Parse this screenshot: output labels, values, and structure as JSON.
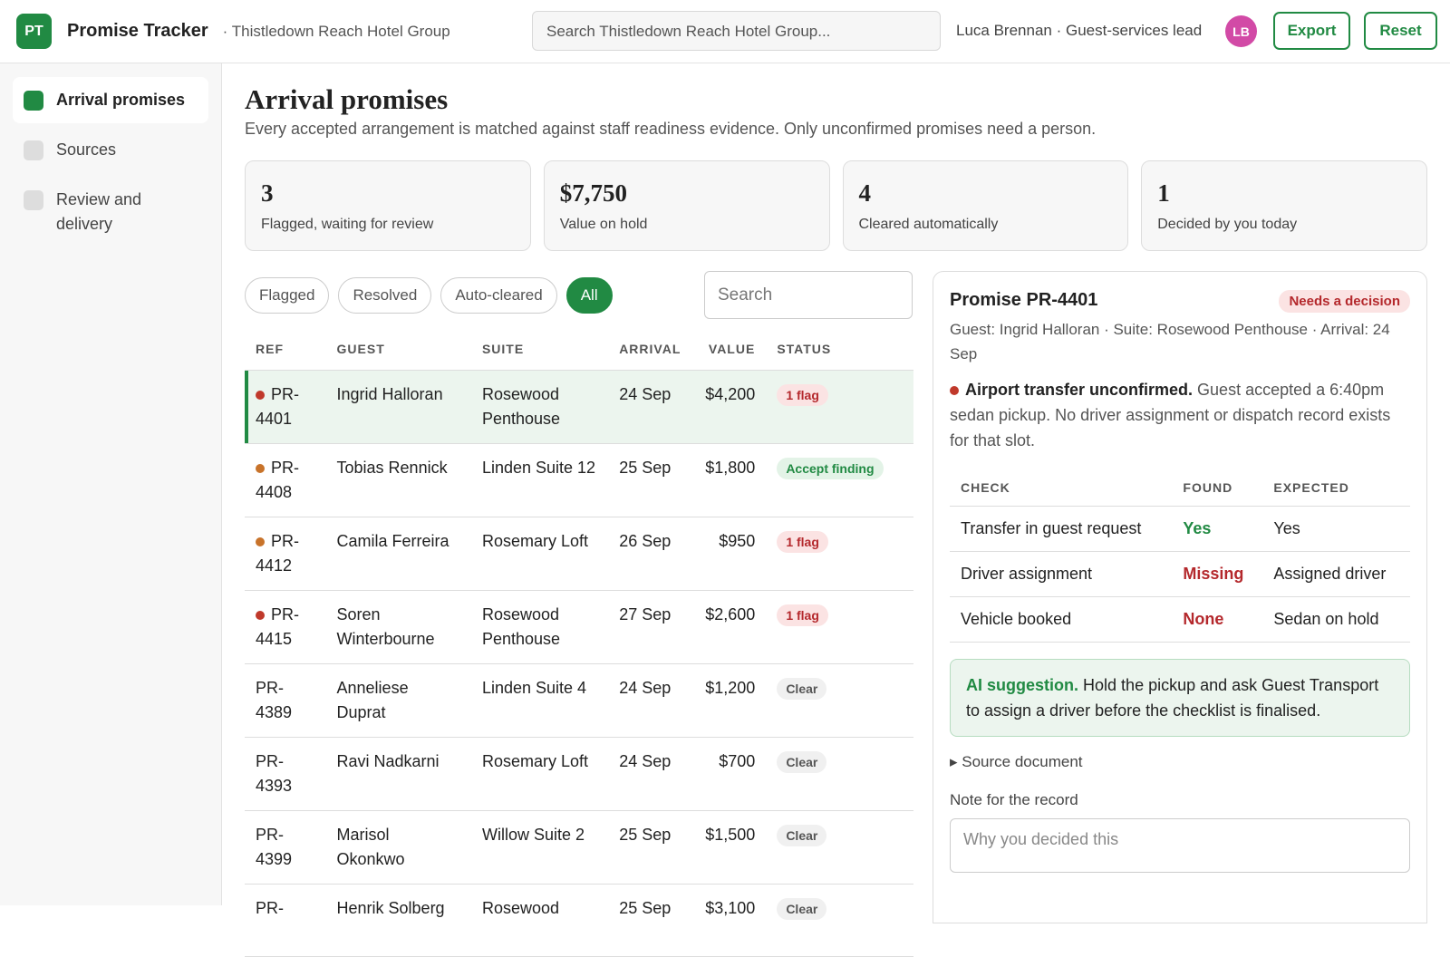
{
  "header": {
    "logo": "PT",
    "app_name": "Promise Tracker",
    "org": "· Thistledown Reach Hotel Group",
    "search_placeholder": "Search Thistledown Reach Hotel Group...",
    "user": "Luca Brennan · Guest-services lead",
    "avatar": "LB",
    "buttons": [
      "Export",
      "Reset"
    ]
  },
  "sidebar": {
    "active": 0,
    "items": [
      "Arrival promises",
      "Sources",
      "Review and delivery"
    ]
  },
  "main": {
    "title": "Arrival promises",
    "subtitle": "Every accepted arrangement is matched against staff readiness evidence. Only unconfirmed promises need a person.",
    "stats": [
      {
        "value": "3",
        "label": "Flagged, waiting for review"
      },
      {
        "value": "$7,750",
        "label": "Value on hold"
      },
      {
        "value": "4",
        "label": "Cleared automatically"
      },
      {
        "value": "1",
        "label": "Decided by you today"
      }
    ],
    "filters": {
      "active": 3,
      "items": [
        "Flagged",
        "Resolved",
        "Auto-cleared",
        "All"
      ]
    },
    "search_placeholder": "Search"
  },
  "table": {
    "selected_row": 0,
    "columns": [
      "REF",
      "GUEST",
      "SUITE",
      "ARRIVAL",
      "VALUE",
      "STATUS"
    ],
    "rows": [
      {
        "dot": "#c0392b",
        "tone": "flag",
        "cells": [
          "PR-4401",
          "Ingrid Halloran",
          "Rosewood Penthouse",
          "24 Sep",
          "$4,200",
          "1 flag"
        ]
      },
      {
        "dot": "#c8732a",
        "tone": "accept",
        "cells": [
          "PR-4408",
          "Tobias Rennick",
          "Linden Suite 12",
          "25 Sep",
          "$1,800",
          "Accept finding"
        ]
      },
      {
        "dot": "#c8732a",
        "tone": "flag",
        "cells": [
          "PR-4412",
          "Camila Ferreira",
          "Rosemary Loft",
          "26 Sep",
          "$950",
          "1 flag"
        ]
      },
      {
        "dot": "#c0392b",
        "tone": "flag",
        "cells": [
          "PR-4415",
          "Soren Winterbourne",
          "Rosewood Penthouse",
          "27 Sep",
          "$2,600",
          "1 flag"
        ]
      },
      {
        "dot": null,
        "tone": "clear",
        "cells": [
          "PR-4389",
          "Anneliese Duprat",
          "Linden Suite 4",
          "24 Sep",
          "$1,200",
          "Clear"
        ]
      },
      {
        "dot": null,
        "tone": "clear",
        "cells": [
          "PR-4393",
          "Ravi Nadkarni",
          "Rosemary Loft",
          "24 Sep",
          "$700",
          "Clear"
        ]
      },
      {
        "dot": null,
        "tone": "clear",
        "cells": [
          "PR-4399",
          "Marisol Okonkwo",
          "Willow Suite 2",
          "25 Sep",
          "$1,500",
          "Clear"
        ]
      },
      {
        "dot": null,
        "tone": "clear",
        "cells": [
          "PR-",
          "Henrik Solberg",
          "Rosewood",
          "25 Sep",
          "$3,100",
          "Clear"
        ]
      }
    ]
  },
  "detail": {
    "title": "Promise PR-4401",
    "badge": "Needs a decision",
    "meta": "Guest: Ingrid Halloran · Suite: Rosewood Penthouse · Arrival: 24 Sep",
    "alert_title": "Airport transfer unconfirmed.",
    "alert_text": "Guest accepted a 6:40pm sedan pickup. No driver assignment or dispatch record exists for that slot.",
    "check_columns": [
      "CHECK",
      "FOUND",
      "EXPECTED"
    ],
    "checks": [
      {
        "tone": "ok",
        "cells": [
          "Transfer in guest request",
          "Yes",
          "Yes"
        ]
      },
      {
        "tone": "bad",
        "cells": [
          "Driver assignment",
          "Missing",
          "Assigned driver"
        ]
      },
      {
        "tone": "bad",
        "cells": [
          "Vehicle booked",
          "None",
          "Sedan on hold"
        ]
      }
    ],
    "ai_label": "AI suggestion.",
    "ai_text": "Hold the pickup and ask Guest Transport to assign a driver before the checklist is finalised.",
    "source": "Source document",
    "note_label": "Note for the record",
    "note_placeholder": "Why you decided this"
  }
}
